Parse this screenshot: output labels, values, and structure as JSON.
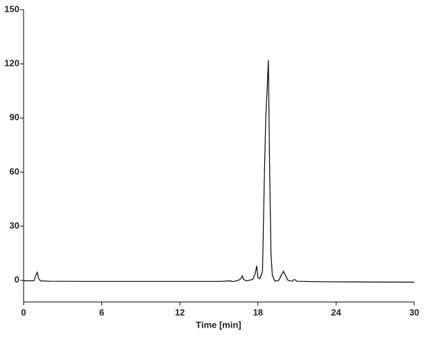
{
  "chart_data": {
    "type": "line",
    "x_label": "Time [min]",
    "x": [
      0,
      0.8,
      0.95,
      1.05,
      1.15,
      1.3,
      2,
      5,
      10,
      15,
      15.9,
      16.0,
      16.1,
      16.5,
      16.7,
      16.8,
      16.9,
      17.1,
      17.6,
      17.8,
      17.9,
      18.0,
      18.15,
      18.35,
      18.5,
      18.6,
      18.7,
      18.8,
      18.9,
      19.0,
      19.1,
      19.3,
      19.6,
      19.8,
      19.95,
      20.1,
      20.3,
      20.6,
      20.8,
      21.0,
      21.5,
      23,
      26,
      30
    ],
    "series": [
      {
        "color": "#000000",
        "values": [
          -0.3,
          -0.2,
          3,
          4.5,
          1,
          -0.3,
          -0.5,
          -0.6,
          -0.6,
          -0.6,
          -0.3,
          -0.6,
          -0.7,
          0,
          1,
          2.5,
          0.5,
          -0.3,
          0.5,
          4,
          8,
          1.5,
          1,
          5,
          60,
          90,
          105,
          122,
          60,
          15,
          3,
          -0.5,
          0,
          3,
          5,
          3,
          0,
          -0.5,
          0.5,
          -0.5,
          -0.6,
          -0.8,
          -0.9,
          -1.0
        ]
      }
    ],
    "xlim": [
      0,
      30
    ],
    "xticks": [
      0,
      6,
      12,
      18,
      24,
      30
    ],
    "ylim": [
      -12,
      150
    ],
    "yticks": [
      0,
      30,
      60,
      90,
      120,
      150
    ]
  }
}
